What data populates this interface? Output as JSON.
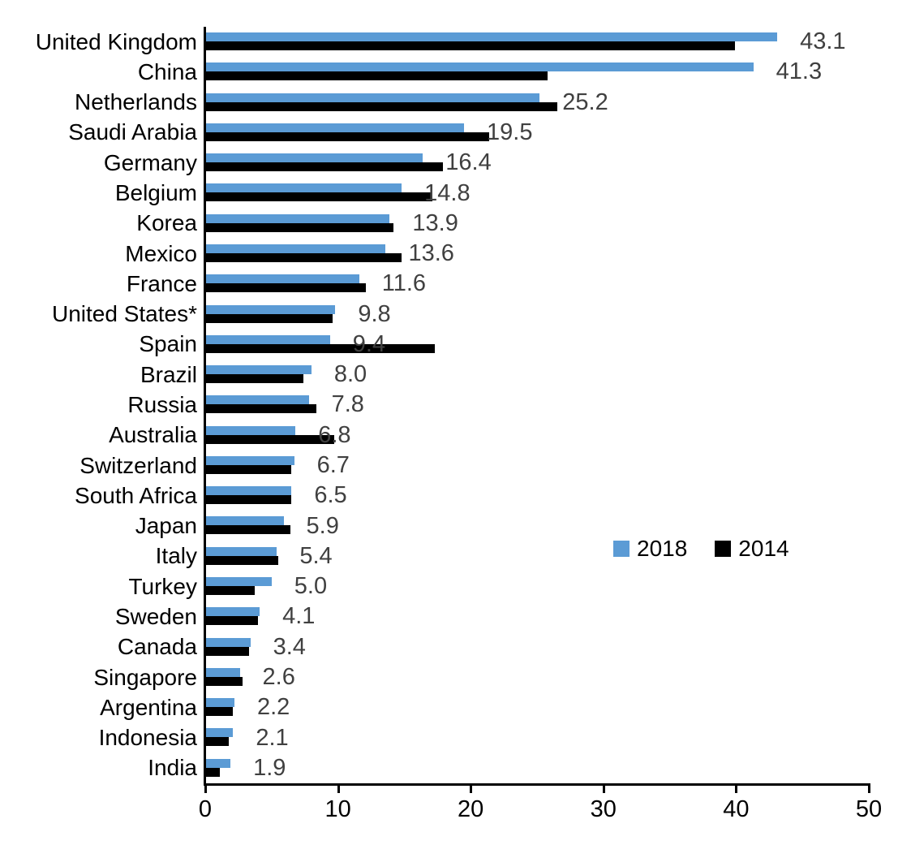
{
  "chart_data": {
    "type": "bar",
    "orientation": "horizontal",
    "title": "",
    "xlabel": "",
    "ylabel": "",
    "grid": false,
    "categories": [
      "United Kingdom",
      "China",
      "Netherlands",
      "Saudi Arabia",
      "Germany",
      "Belgium",
      "Korea",
      "Mexico",
      "France",
      "United States*",
      "Spain",
      "Brazil",
      "Russia",
      "Australia",
      "Switzerland",
      "South Africa",
      "Japan",
      "Italy",
      "Turkey",
      "Sweden",
      "Canada",
      "Singapore",
      "Argentina",
      "Indonesia",
      "India"
    ],
    "series": [
      {
        "name": "2018",
        "color": "#5B9BD5",
        "values": [
          43.1,
          41.3,
          25.2,
          19.5,
          16.4,
          14.8,
          13.9,
          13.6,
          11.6,
          9.8,
          9.4,
          8.0,
          7.8,
          6.8,
          6.7,
          6.5,
          5.9,
          5.4,
          5.0,
          4.1,
          3.4,
          2.6,
          2.2,
          2.1,
          1.9
        ]
      },
      {
        "name": "2014",
        "color": "#000000",
        "values": [
          39.9,
          25.8,
          26.5,
          21.4,
          17.9,
          17.1,
          14.2,
          14.8,
          12.1,
          9.6,
          17.3,
          7.4,
          8.4,
          9.7,
          6.5,
          6.5,
          6.4,
          5.5,
          3.7,
          4.0,
          3.3,
          2.8,
          2.1,
          1.8,
          1.1
        ]
      }
    ],
    "data_labels": {
      "series": "2018",
      "values": [
        "43.1",
        "41.3",
        "25.2",
        "19.5",
        "16.4",
        "14.8",
        "13.9",
        "13.6",
        "11.6",
        "9.8",
        "9.4",
        "8.0",
        "7.8",
        "6.8",
        "6.7",
        "6.5",
        "5.9",
        "5.4",
        "5.0",
        "4.1",
        "3.4",
        "2.6",
        "2.2",
        "2.1",
        "1.9"
      ],
      "color": "#404040"
    },
    "x_axis": {
      "min": 0,
      "max": 50,
      "ticks": [
        0,
        10,
        20,
        30,
        40,
        50
      ]
    },
    "legend": {
      "position": "middle-right",
      "entries": [
        "2018",
        "2014"
      ]
    }
  },
  "colors": {
    "series_2018": "#5B9BD5",
    "series_2014": "#000000",
    "value_label": "#404040",
    "axis": "#000000",
    "background": "#ffffff"
  }
}
